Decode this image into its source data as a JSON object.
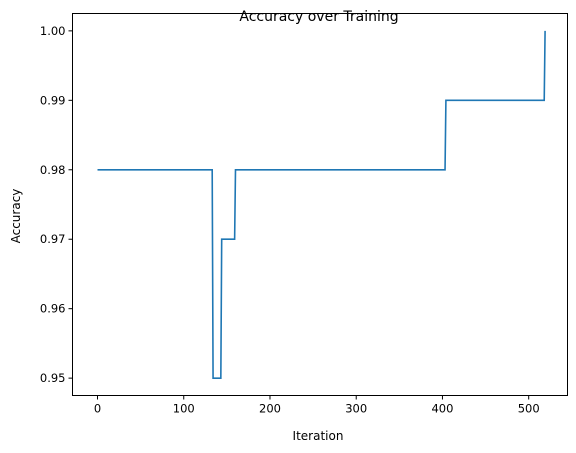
{
  "chart_data": {
    "type": "line",
    "title": "Accuracy over Training",
    "xlabel": "Iteration",
    "ylabel": "Accuracy",
    "xlim": [
      -29,
      545
    ],
    "ylim": [
      0.9475,
      1.0025
    ],
    "x_ticks": [
      0,
      100,
      200,
      300,
      400,
      500
    ],
    "y_ticks": [
      0.95,
      0.96,
      0.97,
      0.98,
      0.99,
      1.0
    ],
    "x_tick_labels": [
      "0",
      "100",
      "200",
      "300",
      "400",
      "500"
    ],
    "y_tick_labels": [
      "0.95",
      "0.96",
      "0.97",
      "0.98",
      "0.99",
      "1.00"
    ],
    "grid": false,
    "legend": "none",
    "color": "#1f77b4",
    "series": [
      {
        "x": [
          0,
          133,
          134,
          143,
          144,
          159,
          160,
          403,
          404,
          518,
          519
        ],
        "y": [
          0.98,
          0.98,
          0.95,
          0.95,
          0.97,
          0.97,
          0.98,
          0.98,
          0.99,
          0.99,
          1.0
        ]
      }
    ]
  }
}
